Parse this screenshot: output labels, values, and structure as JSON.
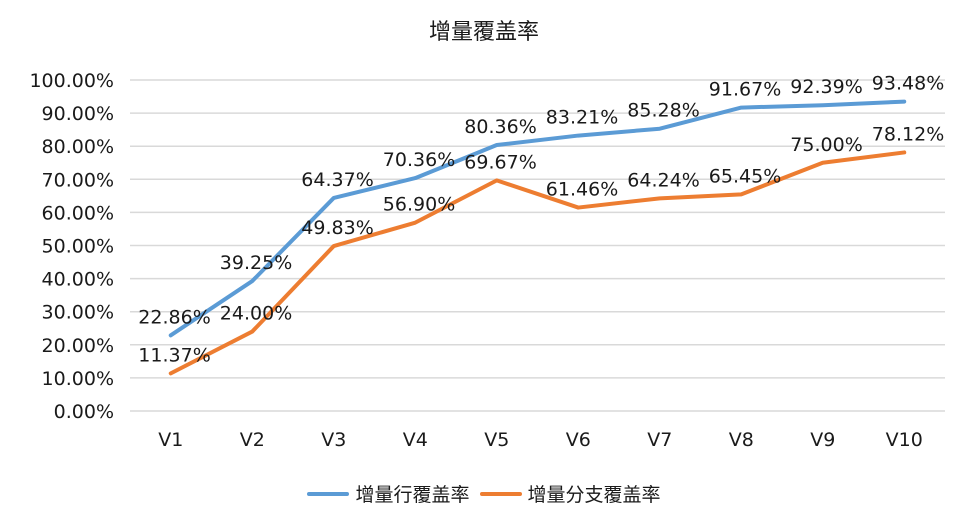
{
  "chart_data": {
    "type": "line",
    "title": "增量覆盖率",
    "xlabel": "",
    "ylabel": "",
    "categories": [
      "V1",
      "V2",
      "V3",
      "V4",
      "V5",
      "V6",
      "V7",
      "V8",
      "V9",
      "V10"
    ],
    "series": [
      {
        "name": "增量行覆盖率",
        "color": "#5B9BD5",
        "values": [
          22.86,
          39.25,
          64.37,
          70.36,
          80.36,
          83.21,
          85.28,
          91.67,
          92.39,
          93.48
        ],
        "labels": [
          "22.86%",
          "39.25%",
          "64.37%",
          "70.36%",
          "80.36%",
          "83.21%",
          "85.28%",
          "91.67%",
          "92.39%",
          "93.48%"
        ]
      },
      {
        "name": "增量分支覆盖率",
        "color": "#ED7D31",
        "values": [
          11.37,
          24.0,
          49.83,
          56.9,
          69.67,
          61.46,
          64.24,
          65.45,
          75.0,
          78.12
        ],
        "labels": [
          "11.37%",
          "24.00%",
          "49.83%",
          "56.90%",
          "69.67%",
          "61.46%",
          "64.24%",
          "65.45%",
          "75.00%",
          "78.12%"
        ]
      }
    ],
    "ylim": [
      0,
      100
    ],
    "yticks": [
      "0.00%",
      "10.00%",
      "20.00%",
      "30.00%",
      "40.00%",
      "50.00%",
      "60.00%",
      "70.00%",
      "80.00%",
      "90.00%",
      "100.00%"
    ],
    "grid": true,
    "legend_position": "bottom"
  }
}
